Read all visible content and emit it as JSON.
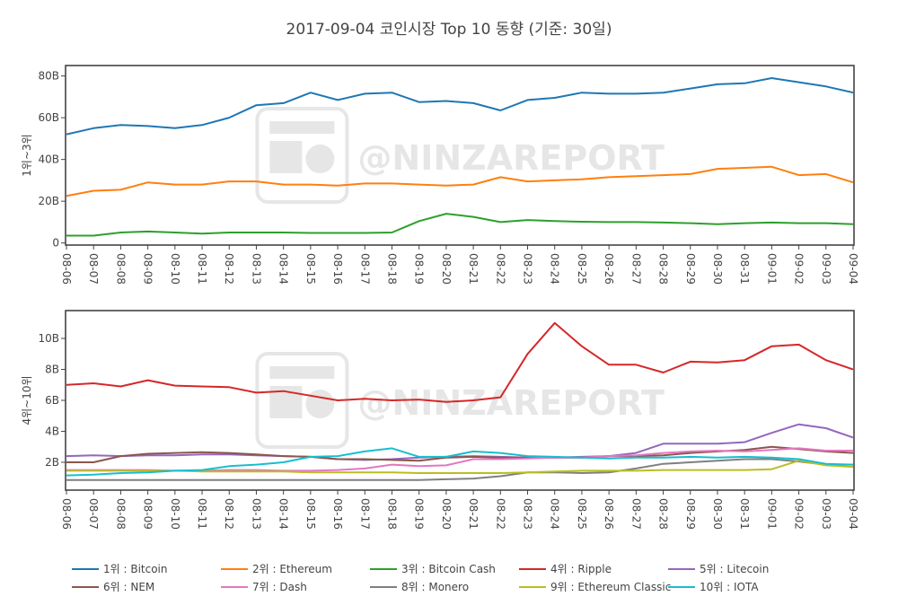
{
  "chart_data": {
    "type": "line",
    "title": "2017-09-04 코인시장 Top 10 동향 (기준: 30일)",
    "watermark": "@NINZAREPORT",
    "x": [
      "08-06",
      "08-07",
      "08-08",
      "08-09",
      "08-10",
      "08-11",
      "08-12",
      "08-13",
      "08-14",
      "08-15",
      "08-16",
      "08-17",
      "08-18",
      "08-19",
      "08-20",
      "08-21",
      "08-22",
      "08-23",
      "08-24",
      "08-25",
      "08-26",
      "08-27",
      "08-28",
      "08-29",
      "08-30",
      "08-31",
      "09-01",
      "09-02",
      "09-03",
      "09-04"
    ],
    "panels": [
      {
        "ylabel": "1위~3위",
        "ylim": [
          -1,
          85
        ],
        "yticks": [
          0,
          20,
          40,
          60,
          80
        ],
        "ytick_labels": [
          "0",
          "20B",
          "40B",
          "60B",
          "80B"
        ],
        "series": [
          {
            "name": "1위 : Bitcoin",
            "color": "#1f77b4",
            "values": [
              52,
              55,
              56.5,
              56,
              55,
              56.5,
              60,
              66,
              67,
              72,
              68.5,
              71.5,
              72,
              67.5,
              68,
              67,
              63.5,
              68.5,
              69.5,
              72,
              71.5,
              71.5,
              72,
              74,
              76,
              76.5,
              79,
              77,
              75,
              72
            ]
          },
          {
            "name": "2위 : Ethereum",
            "color": "#ff7f0e",
            "values": [
              22.5,
              25,
              25.5,
              29,
              28,
              28,
              29.5,
              29.5,
              28,
              28,
              27.5,
              28.5,
              28.5,
              28,
              27.5,
              28,
              31.5,
              29.5,
              30,
              30.5,
              31.5,
              32,
              32.5,
              33,
              35.5,
              36,
              36.5,
              32.5,
              33,
              29
            ]
          },
          {
            "name": "3위 : Bitcoin Cash",
            "color": "#2ca02c",
            "values": [
              3.5,
              3.5,
              5,
              5.5,
              5,
              4.5,
              5,
              5,
              5,
              4.8,
              4.8,
              4.8,
              5,
              10.5,
              14,
              12.5,
              10,
              11,
              10.5,
              10.2,
              10,
              10,
              9.8,
              9.5,
              9,
              9.5,
              9.8,
              9.5,
              9.5,
              9
            ]
          }
        ]
      },
      {
        "ylabel": "4위~10위",
        "ylim": [
          0.2,
          11.8
        ],
        "yticks": [
          2,
          4,
          6,
          8,
          10
        ],
        "ytick_labels": [
          "2B",
          "4B",
          "6B",
          "8B",
          "10B"
        ],
        "series": [
          {
            "name": "4위 : Ripple",
            "color": "#d62728",
            "values": [
              7,
              7.1,
              6.9,
              7.3,
              6.95,
              6.9,
              6.85,
              6.5,
              6.6,
              6.3,
              6,
              6.1,
              6,
              6.05,
              5.9,
              6,
              6.2,
              9,
              11,
              9.5,
              8.3,
              8.3,
              7.8,
              8.5,
              8.45,
              8.6,
              9.5,
              9.6,
              8.6,
              8
            ]
          },
          {
            "name": "5위 : Litecoin",
            "color": "#9467bd",
            "values": [
              2.4,
              2.45,
              2.4,
              2.45,
              2.45,
              2.5,
              2.5,
              2.45,
              2.4,
              2.35,
              2.2,
              2.15,
              2.2,
              2.3,
              2.35,
              2.4,
              2.35,
              2.3,
              2.3,
              2.35,
              2.4,
              2.6,
              3.2,
              3.2,
              3.2,
              3.3,
              3.9,
              4.45,
              4.2,
              3.6
            ]
          },
          {
            "name": "6위 : NEM",
            "color": "#8c564b",
            "values": [
              2,
              2,
              2.4,
              2.55,
              2.6,
              2.65,
              2.6,
              2.5,
              2.4,
              2.35,
              2.2,
              2.2,
              2.15,
              2.1,
              2.3,
              2.35,
              2.3,
              2.3,
              2.3,
              2.3,
              2.4,
              2.4,
              2.45,
              2.6,
              2.7,
              2.8,
              3,
              2.85,
              2.7,
              2.6
            ]
          },
          {
            "name": "7위 : Dash",
            "color": "#e377c2",
            "values": [
              1.5,
              1.5,
              1.5,
              1.5,
              1.45,
              1.45,
              1.5,
              1.5,
              1.45,
              1.45,
              1.5,
              1.6,
              1.85,
              1.75,
              1.8,
              2.2,
              2.2,
              2.25,
              2.3,
              2.3,
              2.4,
              2.45,
              2.6,
              2.7,
              2.75,
              2.7,
              2.8,
              2.9,
              2.75,
              2.75
            ]
          },
          {
            "name": "8위 : Monero",
            "color": "#7f7f7f",
            "values": [
              0.85,
              0.85,
              0.85,
              0.85,
              0.85,
              0.85,
              0.85,
              0.85,
              0.85,
              0.85,
              0.85,
              0.85,
              0.85,
              0.85,
              0.9,
              0.95,
              1.1,
              1.35,
              1.35,
              1.3,
              1.35,
              1.6,
              1.9,
              2.0,
              2.1,
              2.2,
              2.2,
              2.05,
              1.85,
              1.85
            ]
          },
          {
            "name": "9위 : Ethereum Classic",
            "color": "#bcbd22",
            "values": [
              1.45,
              1.45,
              1.45,
              1.45,
              1.45,
              1.4,
              1.4,
              1.4,
              1.4,
              1.35,
              1.35,
              1.35,
              1.35,
              1.3,
              1.3,
              1.3,
              1.3,
              1.35,
              1.4,
              1.45,
              1.45,
              1.45,
              1.5,
              1.5,
              1.5,
              1.5,
              1.55,
              2.1,
              1.8,
              1.7
            ]
          },
          {
            "name": "10위 : IOTA",
            "color": "#17becf",
            "values": [
              1.15,
              1.2,
              1.3,
              1.35,
              1.45,
              1.5,
              1.75,
              1.85,
              2.0,
              2.35,
              2.4,
              2.7,
              2.9,
              2.35,
              2.35,
              2.7,
              2.6,
              2.4,
              2.35,
              2.3,
              2.25,
              2.3,
              2.3,
              2.35,
              2.3,
              2.35,
              2.3,
              2.2,
              1.9,
              1.85
            ]
          }
        ]
      }
    ],
    "legend_position": "bottom",
    "grid": false
  }
}
